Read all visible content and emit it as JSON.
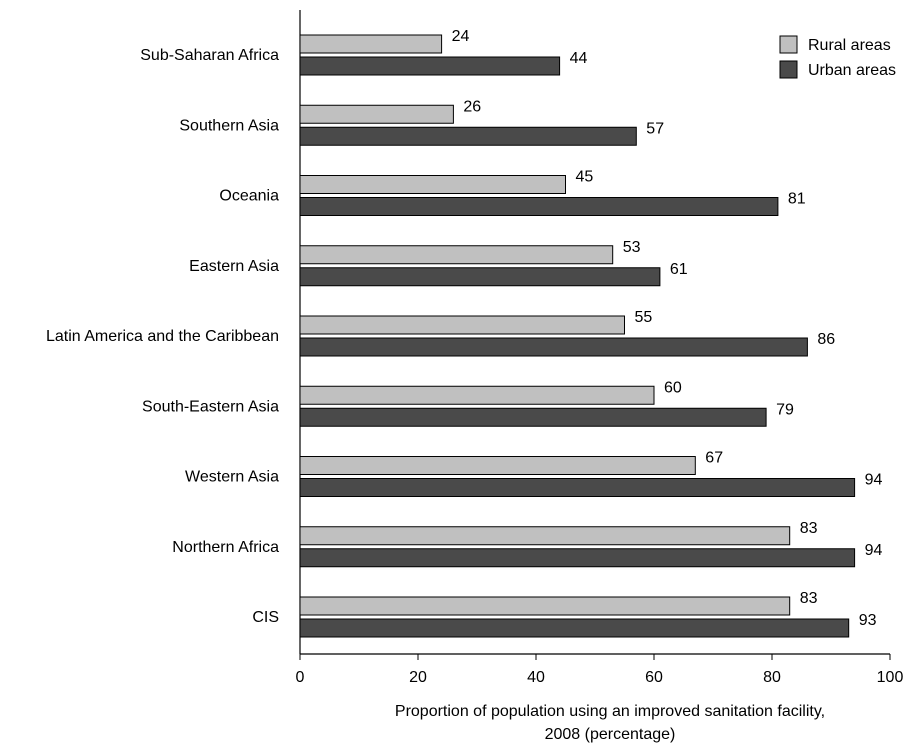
{
  "chart_data": {
    "type": "bar",
    "orientation": "horizontal",
    "categories": [
      "Sub-Saharan Africa",
      "Southern Asia",
      "Oceania",
      "Eastern Asia",
      "Latin America and the Caribbean",
      "South-Eastern Asia",
      "Western Asia",
      "Northern Africa",
      "CIS"
    ],
    "series": [
      {
        "name": "Rural areas",
        "values": [
          24,
          26,
          45,
          53,
          55,
          60,
          67,
          83,
          83
        ],
        "color": "#c0c0c0"
      },
      {
        "name": "Urban areas",
        "values": [
          44,
          57,
          81,
          61,
          86,
          79,
          94,
          94,
          93
        ],
        "color": "#4a4a4a"
      }
    ],
    "xlabel_lines": [
      "Proportion of population using an improved sanitation facility,",
      "2008 (percentage)"
    ],
    "xlim": [
      0,
      100
    ],
    "xticks": [
      0,
      20,
      40,
      60,
      80,
      100
    ],
    "grid": false,
    "legend_position": "top-right",
    "data_labels": true
  }
}
